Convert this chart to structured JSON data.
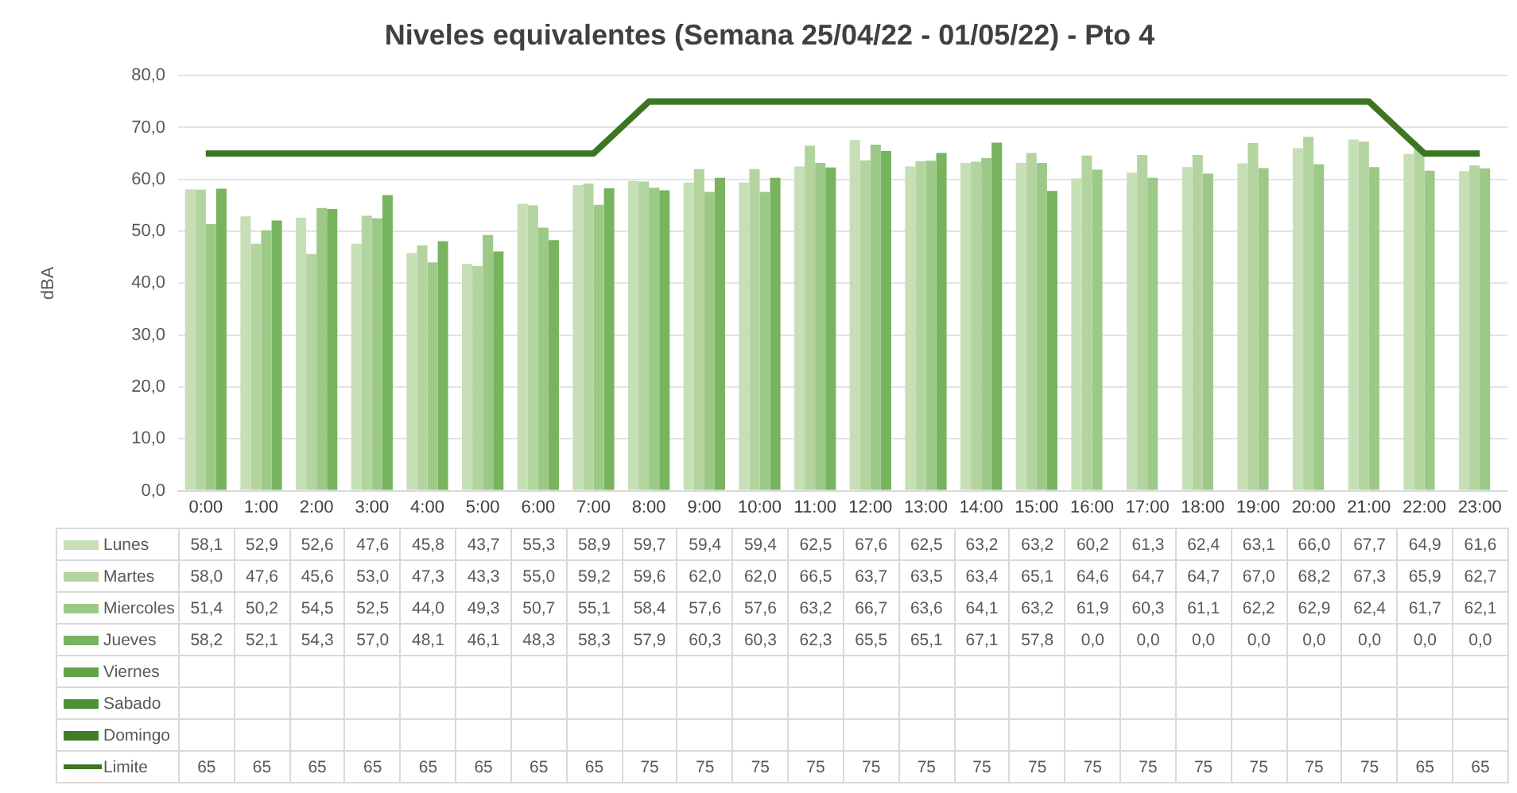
{
  "chart_data": {
    "type": "bar",
    "title": "Niveles equivalentes (Semana 25/04/22 - 01/05/22) - Pto 4",
    "ylabel": "dBA",
    "categories": [
      "0:00",
      "1:00",
      "2:00",
      "3:00",
      "4:00",
      "5:00",
      "6:00",
      "7:00",
      "8:00",
      "9:00",
      "10:00",
      "11:00",
      "12:00",
      "13:00",
      "14:00",
      "15:00",
      "16:00",
      "17:00",
      "18:00",
      "19:00",
      "20:00",
      "21:00",
      "22:00",
      "23:00"
    ],
    "ylim": [
      0,
      80
    ],
    "yticks": [
      {
        "value": 0,
        "label": "0,0"
      },
      {
        "value": 10,
        "label": "10,0"
      },
      {
        "value": 20,
        "label": "20,0"
      },
      {
        "value": 30,
        "label": "30,0"
      },
      {
        "value": 40,
        "label": "40,0"
      },
      {
        "value": 50,
        "label": "50,0"
      },
      {
        "value": 60,
        "label": "60,0"
      },
      {
        "value": 70,
        "label": "70,0"
      },
      {
        "value": 80,
        "label": "80,0"
      }
    ],
    "grid": "y",
    "legend": "bottom",
    "series": [
      {
        "name": "Lunes",
        "color": "#c6dfb6",
        "values": [
          58.1,
          52.9,
          52.6,
          47.6,
          45.8,
          43.7,
          55.3,
          58.9,
          59.7,
          59.4,
          59.4,
          62.5,
          67.6,
          62.5,
          63.2,
          63.2,
          60.2,
          61.3,
          62.4,
          63.1,
          66.0,
          67.7,
          64.9,
          61.6
        ],
        "value_labels": [
          "58,1",
          "52,9",
          "52,6",
          "47,6",
          "45,8",
          "43,7",
          "55,3",
          "58,9",
          "59,7",
          "59,4",
          "59,4",
          "62,5",
          "67,6",
          "62,5",
          "63,2",
          "63,2",
          "60,2",
          "61,3",
          "62,4",
          "63,1",
          "66,0",
          "67,7",
          "64,9",
          "61,6"
        ]
      },
      {
        "name": "Martes",
        "color": "#b3d49f",
        "values": [
          58.0,
          47.6,
          45.6,
          53.0,
          47.3,
          43.3,
          55.0,
          59.2,
          59.6,
          62.0,
          62.0,
          66.5,
          63.7,
          63.5,
          63.4,
          65.1,
          64.6,
          64.7,
          64.7,
          67.0,
          68.2,
          67.3,
          65.9,
          62.7
        ],
        "value_labels": [
          "58,0",
          "47,6",
          "45,6",
          "53,0",
          "47,3",
          "43,3",
          "55,0",
          "59,2",
          "59,6",
          "62,0",
          "62,0",
          "66,5",
          "63,7",
          "63,5",
          "63,4",
          "65,1",
          "64,6",
          "64,7",
          "64,7",
          "67,0",
          "68,2",
          "67,3",
          "65,9",
          "62,7"
        ]
      },
      {
        "name": "Miercoles",
        "color": "#9cc987",
        "values": [
          51.4,
          50.2,
          54.5,
          52.5,
          44.0,
          49.3,
          50.7,
          55.1,
          58.4,
          57.6,
          57.6,
          63.2,
          66.7,
          63.6,
          64.1,
          63.2,
          61.9,
          60.3,
          61.1,
          62.2,
          62.9,
          62.4,
          61.7,
          62.1
        ],
        "value_labels": [
          "51,4",
          "50,2",
          "54,5",
          "52,5",
          "44,0",
          "49,3",
          "50,7",
          "55,1",
          "58,4",
          "57,6",
          "57,6",
          "63,2",
          "66,7",
          "63,6",
          "64,1",
          "63,2",
          "61,9",
          "60,3",
          "61,1",
          "62,2",
          "62,9",
          "62,4",
          "61,7",
          "62,1"
        ]
      },
      {
        "name": "Jueves",
        "color": "#78b35e",
        "values": [
          58.2,
          52.1,
          54.3,
          57.0,
          48.1,
          46.1,
          48.3,
          58.3,
          57.9,
          60.3,
          60.3,
          62.3,
          65.5,
          65.1,
          67.1,
          57.8,
          0.0,
          0.0,
          0.0,
          0.0,
          0.0,
          0.0,
          0.0,
          0.0
        ],
        "value_labels": [
          "58,2",
          "52,1",
          "54,3",
          "57,0",
          "48,1",
          "46,1",
          "48,3",
          "58,3",
          "57,9",
          "60,3",
          "60,3",
          "62,3",
          "65,5",
          "65,1",
          "67,1",
          "57,8",
          "0,0",
          "0,0",
          "0,0",
          "0,0",
          "0,0",
          "0,0",
          "0,0",
          "0,0"
        ]
      },
      {
        "name": "Viernes",
        "color": "#64a447",
        "values": [
          null,
          null,
          null,
          null,
          null,
          null,
          null,
          null,
          null,
          null,
          null,
          null,
          null,
          null,
          null,
          null,
          null,
          null,
          null,
          null,
          null,
          null,
          null,
          null
        ]
      },
      {
        "name": "Sabado",
        "color": "#4f9034",
        "values": [
          null,
          null,
          null,
          null,
          null,
          null,
          null,
          null,
          null,
          null,
          null,
          null,
          null,
          null,
          null,
          null,
          null,
          null,
          null,
          null,
          null,
          null,
          null,
          null
        ]
      },
      {
        "name": "Domingo",
        "color": "#3f7d28",
        "values": [
          null,
          null,
          null,
          null,
          null,
          null,
          null,
          null,
          null,
          null,
          null,
          null,
          null,
          null,
          null,
          null,
          null,
          null,
          null,
          null,
          null,
          null,
          null,
          null
        ]
      },
      {
        "name": "Limite",
        "type": "line",
        "color": "#3d7522",
        "values": [
          65,
          65,
          65,
          65,
          65,
          65,
          65,
          65,
          75,
          75,
          75,
          75,
          75,
          75,
          75,
          75,
          75,
          75,
          75,
          75,
          75,
          75,
          65,
          65
        ],
        "value_labels": [
          "65",
          "65",
          "65",
          "65",
          "65",
          "65",
          "65",
          "65",
          "75",
          "75",
          "75",
          "75",
          "75",
          "75",
          "75",
          "75",
          "75",
          "75",
          "75",
          "75",
          "75",
          "75",
          "65",
          "65"
        ]
      }
    ]
  }
}
